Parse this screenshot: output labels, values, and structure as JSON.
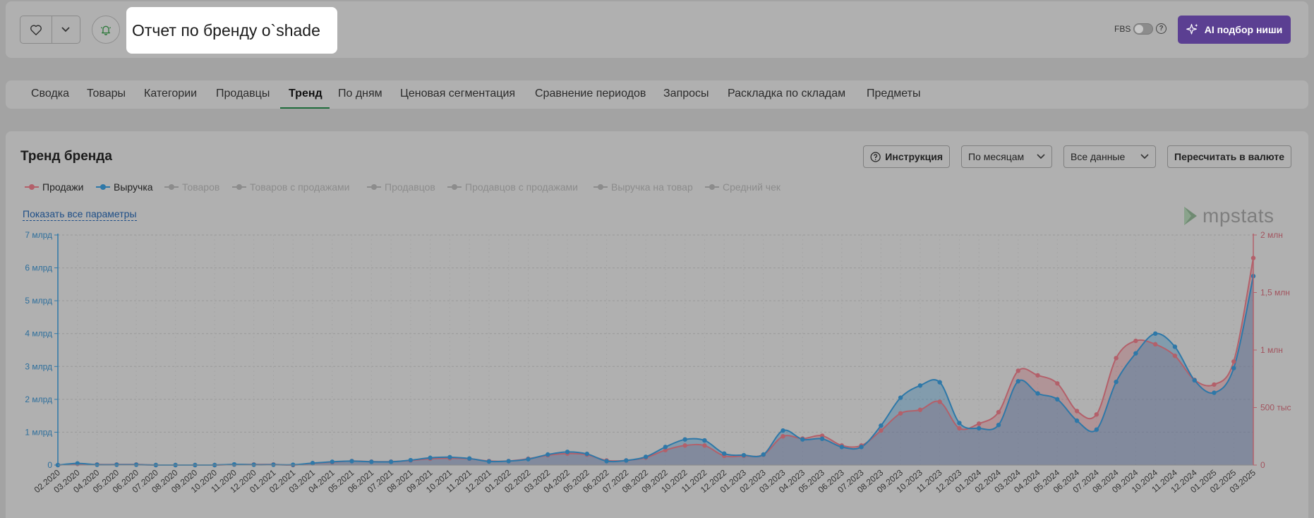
{
  "header": {
    "title": "Отчет по бренду o`shade",
    "fbs_label": "FBS",
    "help_symbol": "?",
    "ai_button_label": "AI подбор ниши"
  },
  "tabs": [
    {
      "label": "Сводка",
      "active": false
    },
    {
      "label": "Товары",
      "active": false
    },
    {
      "label": "Категории",
      "active": false
    },
    {
      "label": "Продавцы",
      "active": false
    },
    {
      "label": "Тренд",
      "active": true
    },
    {
      "label": "По дням",
      "active": false
    },
    {
      "label": "Ценовая сегментация",
      "active": false
    },
    {
      "label": "Сравнение периодов",
      "active": false
    },
    {
      "label": "Запросы",
      "active": false
    },
    {
      "label": "Раскладка по складам",
      "active": false
    },
    {
      "label": "Предметы",
      "active": false
    }
  ],
  "section": {
    "title": "Тренд бренда",
    "instruction_label": "Инструкция",
    "period_select": "По месяцам",
    "data_select": "Все данные",
    "currency_button": "Пересчитать в валюте",
    "show_all_link": "Показать все параметры",
    "logo_text": "mpstats"
  },
  "legend": [
    {
      "label": "Продажи",
      "active": true,
      "color": "#b3606a"
    },
    {
      "label": "Выручка",
      "active": true,
      "color": "#2e78a8"
    },
    {
      "label": "Товаров",
      "active": false,
      "color": "#8c8c8c"
    },
    {
      "label": "Товаров с продажами",
      "active": false,
      "color": "#8c8c8c"
    },
    {
      "label": "Продавцов",
      "active": false,
      "color": "#8c8c8c"
    },
    {
      "label": "Продавцов с продажами",
      "active": false,
      "color": "#8c8c8c"
    },
    {
      "label": "Выручка на товар",
      "active": false,
      "color": "#8c8c8c"
    },
    {
      "label": "Средний чек",
      "active": false,
      "color": "#8c8c8c"
    }
  ],
  "chart_data": {
    "type": "area",
    "x": [
      "02.2020",
      "03.2020",
      "04.2020",
      "05.2020",
      "06.2020",
      "07.2020",
      "08.2020",
      "09.2020",
      "10.2020",
      "11.2020",
      "12.2020",
      "01.2021",
      "02.2021",
      "03.2021",
      "04.2021",
      "05.2021",
      "06.2021",
      "07.2021",
      "08.2021",
      "09.2021",
      "10.2021",
      "11.2021",
      "12.2021",
      "01.2022",
      "02.2022",
      "03.2022",
      "04.2022",
      "05.2022",
      "06.2022",
      "07.2022",
      "08.2022",
      "09.2022",
      "10.2022",
      "11.2022",
      "12.2022",
      "01.2023",
      "02.2023",
      "03.2023",
      "04.2023",
      "05.2023",
      "06.2023",
      "07.2023",
      "08.2023",
      "09.2023",
      "10.2023",
      "11.2023",
      "12.2023",
      "01.2024",
      "02.2024",
      "03.2024",
      "04.2024",
      "05.2024",
      "06.2024",
      "07.2024",
      "08.2024",
      "09.2024",
      "10.2024",
      "11.2024",
      "12.2024",
      "01.2025",
      "02.2025",
      "03.2025"
    ],
    "series": [
      {
        "name": "Выручка",
        "axis": "left",
        "color": "#2e78a8",
        "values": [
          0,
          0.05,
          0.01,
          0.01,
          0.01,
          0,
          0,
          0,
          0,
          0.02,
          0.01,
          0.01,
          0.01,
          0.06,
          0.1,
          0.12,
          0.1,
          0.1,
          0.15,
          0.22,
          0.24,
          0.2,
          0.11,
          0.12,
          0.18,
          0.32,
          0.4,
          0.34,
          0.12,
          0.14,
          0.25,
          0.55,
          0.78,
          0.75,
          0.35,
          0.3,
          0.32,
          1.05,
          0.78,
          0.8,
          0.55,
          0.55,
          1.2,
          2.05,
          2.42,
          2.52,
          1.28,
          1.12,
          1.22,
          2.55,
          2.18,
          2.0,
          1.35,
          1.08,
          2.53,
          3.4,
          4.0,
          3.6,
          2.58,
          2.2,
          2.95,
          5.75
        ]
      },
      {
        "name": "Продажи",
        "axis": "right",
        "color": "#b3606a",
        "values": [
          0,
          10000,
          5000,
          5000,
          5000,
          0,
          0,
          0,
          0,
          5000,
          5000,
          5000,
          0,
          15000,
          25000,
          35000,
          30000,
          30000,
          40000,
          55000,
          60000,
          55000,
          35000,
          35000,
          55000,
          85000,
          100000,
          90000,
          40000,
          40000,
          65000,
          130000,
          170000,
          170000,
          80000,
          80000,
          90000,
          250000,
          230000,
          255000,
          170000,
          170000,
          300000,
          450000,
          480000,
          550000,
          320000,
          360000,
          460000,
          820000,
          780000,
          710000,
          470000,
          440000,
          930000,
          1080000,
          1050000,
          950000,
          740000,
          700000,
          900000,
          1800000
        ]
      }
    ],
    "y_left": {
      "min": 0,
      "max": 7000000000,
      "ticks": [
        "0",
        "1 млрд",
        "2 млрд",
        "3 млрд",
        "4 млрд",
        "5 млрд",
        "6 млрд",
        "7 млрд"
      ],
      "unit": "млрд"
    },
    "y_right": {
      "min": 0,
      "max": 2000000,
      "ticks": [
        "0",
        "500 тыс",
        "1 млн",
        "1,5 млн",
        "2 млн"
      ]
    },
    "grid": true,
    "legend_position": "top-left"
  },
  "colors": {
    "accent": "#5b3f92",
    "revenue": "#2e78a8",
    "sales": "#b3606a",
    "active_tab_underline": "#1f6b3a"
  },
  "icons": {
    "favorite": "heart-icon",
    "dropdown": "chevron-down-icon",
    "notification": "bell-icon",
    "help": "question-circle-icon",
    "ai": "sparkle-icon",
    "logo": "mpstats-logo-icon"
  }
}
